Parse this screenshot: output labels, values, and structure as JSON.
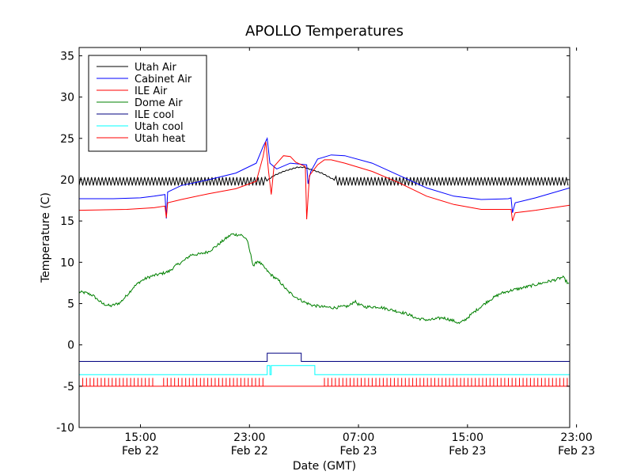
{
  "chart_data": {
    "type": "line",
    "title": "APOLLO Temperatures",
    "xlabel": "Date (GMT)",
    "ylabel": "Temperature (C)",
    "xlim_hours": [
      10.5,
      46.5
    ],
    "ylim": [
      -10,
      36
    ],
    "yticks": [
      -10,
      -5,
      0,
      5,
      10,
      15,
      20,
      25,
      30,
      35
    ],
    "yticklabels": [
      "-10",
      "-5",
      "0",
      "5",
      "10",
      "15",
      "20",
      "25",
      "30",
      "35"
    ],
    "xticks": [
      {
        "h": 15,
        "time": "15:00",
        "date": "Feb 22"
      },
      {
        "h": 23,
        "time": "23:00",
        "date": "Feb 22"
      },
      {
        "h": 31,
        "time": "07:00",
        "date": "Feb 23"
      },
      {
        "h": 39,
        "time": "15:00",
        "date": "Feb 23"
      },
      {
        "h": 47,
        "time": "23:00",
        "date": "Feb 23"
      }
    ],
    "legend_position": "top-left",
    "series": [
      {
        "name": "Utah Air",
        "color": "#000000",
        "kind": "sawtooth",
        "amp": 0.5,
        "points": [
          [
            10.5,
            19.8
          ],
          [
            24.2,
            19.8
          ],
          [
            24.8,
            20.5
          ],
          [
            25.5,
            21.0
          ],
          [
            26.5,
            21.5
          ],
          [
            27.0,
            21.5
          ],
          [
            28.3,
            20.8
          ],
          [
            29.2,
            20.0
          ],
          [
            29.5,
            19.8
          ],
          [
            46.5,
            19.8
          ]
        ]
      },
      {
        "name": "Cabinet Air",
        "color": "#0000ff",
        "kind": "line",
        "points": [
          [
            10.5,
            17.7
          ],
          [
            13,
            17.7
          ],
          [
            15,
            17.8
          ],
          [
            16,
            18.0
          ],
          [
            16.8,
            18.2
          ],
          [
            16.9,
            15.3
          ],
          [
            17.0,
            18.5
          ],
          [
            18,
            19.3
          ],
          [
            20,
            20.0
          ],
          [
            22,
            20.8
          ],
          [
            23.5,
            22.0
          ],
          [
            24,
            24.0
          ],
          [
            24.3,
            25.0
          ],
          [
            24.5,
            22.0
          ],
          [
            25.0,
            21.3
          ],
          [
            26.0,
            22.0
          ],
          [
            27.2,
            21.8
          ],
          [
            27.3,
            19.5
          ],
          [
            27.5,
            21.0
          ],
          [
            28,
            22.5
          ],
          [
            29,
            23.0
          ],
          [
            30,
            22.9
          ],
          [
            32,
            22.0
          ],
          [
            34,
            20.5
          ],
          [
            36,
            19.0
          ],
          [
            38,
            18.0
          ],
          [
            40,
            17.6
          ],
          [
            42,
            17.7
          ],
          [
            42.2,
            17.8
          ],
          [
            42.3,
            16.0
          ],
          [
            42.5,
            17.2
          ],
          [
            44,
            17.8
          ],
          [
            46.5,
            19.0
          ]
        ]
      },
      {
        "name": "ILE Air",
        "color": "#ff0000",
        "kind": "line",
        "points": [
          [
            10.5,
            16.3
          ],
          [
            14,
            16.4
          ],
          [
            16,
            16.6
          ],
          [
            16.8,
            16.8
          ],
          [
            16.9,
            15.4
          ],
          [
            17.0,
            17.2
          ],
          [
            18,
            17.6
          ],
          [
            20,
            18.3
          ],
          [
            22,
            18.9
          ],
          [
            23.5,
            19.8
          ],
          [
            24.0,
            22.8
          ],
          [
            24.2,
            24.6
          ],
          [
            24.4,
            21.0
          ],
          [
            24.6,
            18.2
          ],
          [
            24.8,
            21.6
          ],
          [
            25.5,
            22.9
          ],
          [
            26,
            22.8
          ],
          [
            26.4,
            22.1
          ],
          [
            27.1,
            21.6
          ],
          [
            27.2,
            15.2
          ],
          [
            27.4,
            20.5
          ],
          [
            28,
            21.8
          ],
          [
            28.5,
            22.4
          ],
          [
            29,
            22.4
          ],
          [
            30,
            22.0
          ],
          [
            32,
            21.0
          ],
          [
            34,
            19.6
          ],
          [
            36,
            18.0
          ],
          [
            38,
            17.0
          ],
          [
            40,
            16.4
          ],
          [
            42.2,
            16.4
          ],
          [
            42.3,
            15.0
          ],
          [
            42.5,
            16.0
          ],
          [
            44,
            16.3
          ],
          [
            46.5,
            16.9
          ]
        ]
      },
      {
        "name": "Dome Air",
        "color": "#008000",
        "kind": "noisy",
        "points": [
          [
            10.5,
            6.4
          ],
          [
            11,
            6.3
          ],
          [
            11.5,
            6.0
          ],
          [
            12.2,
            5.0
          ],
          [
            12.8,
            4.7
          ],
          [
            13.5,
            5.1
          ],
          [
            14.0,
            6.0
          ],
          [
            14.5,
            7.0
          ],
          [
            15,
            7.7
          ],
          [
            15.6,
            8.2
          ],
          [
            16,
            8.4
          ],
          [
            16.5,
            8.6
          ],
          [
            17.1,
            8.9
          ],
          [
            17.6,
            9.6
          ],
          [
            18.2,
            10.2
          ],
          [
            18.7,
            10.9
          ],
          [
            19.4,
            11.0
          ],
          [
            20,
            11.3
          ],
          [
            20.6,
            12.0
          ],
          [
            21.2,
            12.8
          ],
          [
            21.7,
            13.4
          ],
          [
            22.4,
            13.3
          ],
          [
            22.8,
            12.8
          ],
          [
            23,
            11.5
          ],
          [
            23.3,
            9.5
          ],
          [
            23.6,
            10.2
          ],
          [
            23.9,
            9.7
          ],
          [
            24.5,
            8.6
          ],
          [
            25.2,
            7.7
          ],
          [
            25.8,
            6.5
          ],
          [
            26.4,
            5.8
          ],
          [
            27.0,
            5.2
          ],
          [
            27.6,
            4.8
          ],
          [
            28.4,
            4.6
          ],
          [
            29.2,
            4.5
          ],
          [
            30.3,
            4.7
          ],
          [
            30.7,
            5.3
          ],
          [
            31,
            4.9
          ],
          [
            31.5,
            4.6
          ],
          [
            32.5,
            4.6
          ],
          [
            33.5,
            4.2
          ],
          [
            34.5,
            3.8
          ],
          [
            35.3,
            3.2
          ],
          [
            36.2,
            3.0
          ],
          [
            37.2,
            3.3
          ],
          [
            38.0,
            2.9
          ],
          [
            38.4,
            2.6
          ],
          [
            38.8,
            3.0
          ],
          [
            39.5,
            4.0
          ],
          [
            40.5,
            5.3
          ],
          [
            41.4,
            6.2
          ],
          [
            42.2,
            6.6
          ],
          [
            43.3,
            7.0
          ],
          [
            44.5,
            7.5
          ],
          [
            45.5,
            7.9
          ],
          [
            46,
            8.2
          ],
          [
            46.5,
            7.2
          ]
        ]
      },
      {
        "name": "ILE cool",
        "color": "#000080",
        "kind": "line",
        "points": [
          [
            10.5,
            -2.0
          ],
          [
            24.3,
            -2.0
          ],
          [
            24.3,
            -1.0
          ],
          [
            26.8,
            -1.0
          ],
          [
            26.8,
            -2.0
          ],
          [
            46.5,
            -2.0
          ]
        ]
      },
      {
        "name": "Utah cool",
        "color": "#00ffff",
        "kind": "line",
        "points": [
          [
            10.5,
            -3.6
          ],
          [
            24.3,
            -3.6
          ],
          [
            24.3,
            -2.5
          ],
          [
            24.5,
            -2.5
          ],
          [
            24.5,
            -3.6
          ],
          [
            24.6,
            -3.6
          ],
          [
            24.6,
            -2.5
          ],
          [
            27.8,
            -2.5
          ],
          [
            27.8,
            -3.6
          ],
          [
            46.5,
            -3.6
          ]
        ]
      },
      {
        "name": "Utah heat",
        "color": "#ff0000",
        "kind": "pulse",
        "base": -5.0,
        "high": -4.0,
        "active_ranges": [
          [
            10.5,
            15.9
          ],
          [
            16.7,
            24.2
          ],
          [
            28.5,
            46.5
          ]
        ],
        "period_hours": 0.27
      }
    ],
    "legend": [
      "Utah Air",
      "Cabinet Air",
      "ILE Air",
      "Dome Air",
      "ILE cool",
      "Utah cool",
      "Utah heat"
    ]
  }
}
